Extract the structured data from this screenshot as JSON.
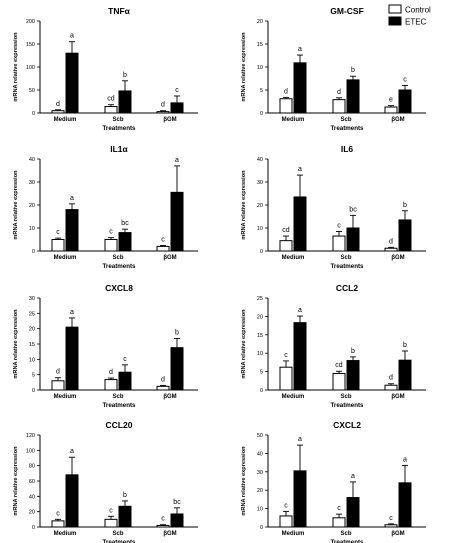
{
  "legend": {
    "items": [
      {
        "name": "Control",
        "color": "#ffffff"
      },
      {
        "name": "ETEC",
        "color": "#000000"
      }
    ],
    "placement": "top-right"
  },
  "chart_data": [
    {
      "type": "bar",
      "title": "TNFα",
      "xlabel": "Treatments",
      "ylabel": "mRNA relative expression",
      "categories": [
        "Medium",
        "Scb",
        "βGM"
      ],
      "ylim": [
        0,
        200
      ],
      "yticks": [
        0,
        50,
        100,
        150,
        200
      ],
      "series": [
        {
          "name": "Control",
          "values": [
            5,
            14,
            3
          ],
          "errors": [
            2,
            4,
            2
          ],
          "letters": [
            "d",
            "cd",
            "d"
          ]
        },
        {
          "name": "ETEC",
          "values": [
            130,
            48,
            22
          ],
          "errors": [
            25,
            22,
            15
          ],
          "letters": [
            "a",
            "b",
            "c"
          ]
        }
      ]
    },
    {
      "type": "bar",
      "title": "GM-CSF",
      "xlabel": "Treatments",
      "ylabel": "mRNA relative expression",
      "categories": [
        "Medium",
        "Scb",
        "βGM"
      ],
      "ylim": [
        0,
        20
      ],
      "yticks": [
        0,
        5,
        10,
        15,
        20
      ],
      "series": [
        {
          "name": "Control",
          "values": [
            3.1,
            2.9,
            1.3
          ],
          "errors": [
            0.3,
            0.4,
            0.3
          ],
          "letters": [
            "d",
            "d",
            "e"
          ]
        },
        {
          "name": "ETEC",
          "values": [
            10.9,
            7.2,
            5.0
          ],
          "errors": [
            1.7,
            0.8,
            1.0
          ],
          "letters": [
            "a",
            "b",
            "c"
          ]
        }
      ]
    },
    {
      "type": "bar",
      "title": "IL1α",
      "xlabel": "Treatments",
      "ylabel": "mRNA relative expression",
      "categories": [
        "Medium",
        "Scb",
        "βGM"
      ],
      "ylim": [
        0,
        40
      ],
      "yticks": [
        0,
        10,
        20,
        30,
        40
      ],
      "series": [
        {
          "name": "Control",
          "values": [
            5.0,
            5.0,
            2.0
          ],
          "errors": [
            0.6,
            0.8,
            0.4
          ],
          "letters": [
            "c",
            "c",
            "c"
          ]
        },
        {
          "name": "ETEC",
          "values": [
            18,
            8,
            25.5
          ],
          "errors": [
            2.5,
            1.5,
            11.5
          ],
          "letters": [
            "a",
            "bc",
            "a"
          ]
        }
      ]
    },
    {
      "type": "bar",
      "title": "IL6",
      "xlabel": "Treatments",
      "ylabel": "mRNA relative expression",
      "categories": [
        "Medium",
        "Scb",
        "βGM"
      ],
      "ylim": [
        0,
        40
      ],
      "yticks": [
        0,
        10,
        20,
        30,
        40
      ],
      "series": [
        {
          "name": "Control",
          "values": [
            4.5,
            6.5,
            1.2
          ],
          "errors": [
            2,
            2,
            0.4
          ],
          "letters": [
            "cd",
            "c",
            "d"
          ]
        },
        {
          "name": "ETEC",
          "values": [
            23.5,
            10,
            13.5
          ],
          "errors": [
            9.5,
            5.5,
            4
          ],
          "letters": [
            "a",
            "bc",
            "b"
          ]
        }
      ]
    },
    {
      "type": "bar",
      "title": "CXCL8",
      "xlabel": "Treatments",
      "ylabel": "mRNA relative expression",
      "categories": [
        "Medium",
        "Scb",
        "βGM"
      ],
      "ylim": [
        0,
        30
      ],
      "yticks": [
        0,
        5,
        10,
        15,
        20,
        25,
        30
      ],
      "series": [
        {
          "name": "Control",
          "values": [
            3.0,
            3.4,
            1.2
          ],
          "errors": [
            1.0,
            0.5,
            0.3
          ],
          "letters": [
            "d",
            "d",
            "d"
          ]
        },
        {
          "name": "ETEC",
          "values": [
            20.5,
            5.8,
            13.8
          ],
          "errors": [
            3,
            2.4,
            3
          ],
          "letters": [
            "a",
            "c",
            "b"
          ]
        }
      ]
    },
    {
      "type": "bar",
      "title": "CCL2",
      "xlabel": "Treatments",
      "ylabel": "mRNA relative expression",
      "categories": [
        "Medium",
        "Scb",
        "βGM"
      ],
      "ylim": [
        0,
        25
      ],
      "yticks": [
        0,
        5,
        10,
        15,
        20,
        25
      ],
      "series": [
        {
          "name": "Control",
          "values": [
            6.2,
            4.5,
            1.3
          ],
          "errors": [
            1.7,
            0.6,
            0.4
          ],
          "letters": [
            "c",
            "cd",
            "d"
          ]
        },
        {
          "name": "ETEC",
          "values": [
            18.3,
            8.0,
            8.1
          ],
          "errors": [
            1.8,
            1.0,
            2.5
          ],
          "letters": [
            "a",
            "b",
            "b"
          ]
        }
      ]
    },
    {
      "type": "bar",
      "title": "CCL20",
      "xlabel": "Treatments",
      "ylabel": "mRNA relative expression",
      "categories": [
        "Medium",
        "Scb",
        "βGM"
      ],
      "ylim": [
        0,
        120
      ],
      "yticks": [
        0,
        20,
        40,
        60,
        80,
        100,
        120
      ],
      "series": [
        {
          "name": "Control",
          "values": [
            8,
            10,
            2
          ],
          "errors": [
            2,
            4,
            1
          ],
          "letters": [
            "c",
            "c",
            "c"
          ]
        },
        {
          "name": "ETEC",
          "values": [
            68,
            27,
            17
          ],
          "errors": [
            23,
            7,
            8
          ],
          "letters": [
            "a",
            "b",
            "bc"
          ]
        }
      ]
    },
    {
      "type": "bar",
      "title": "CXCL2",
      "xlabel": "Treatments",
      "ylabel": "mRNA relative expression",
      "categories": [
        "Medium",
        "Scb",
        "βGM"
      ],
      "ylim": [
        0,
        50
      ],
      "yticks": [
        0,
        10,
        20,
        30,
        40,
        50
      ],
      "series": [
        {
          "name": "Control",
          "values": [
            6,
            5,
            1.2
          ],
          "errors": [
            2.5,
            2,
            0.5
          ],
          "letters": [
            "c",
            "c",
            "c"
          ]
        },
        {
          "name": "ETEC",
          "values": [
            30.5,
            16,
            24
          ],
          "errors": [
            14,
            8.5,
            9.5
          ],
          "letters": [
            "a",
            "a",
            "a"
          ]
        }
      ]
    }
  ]
}
